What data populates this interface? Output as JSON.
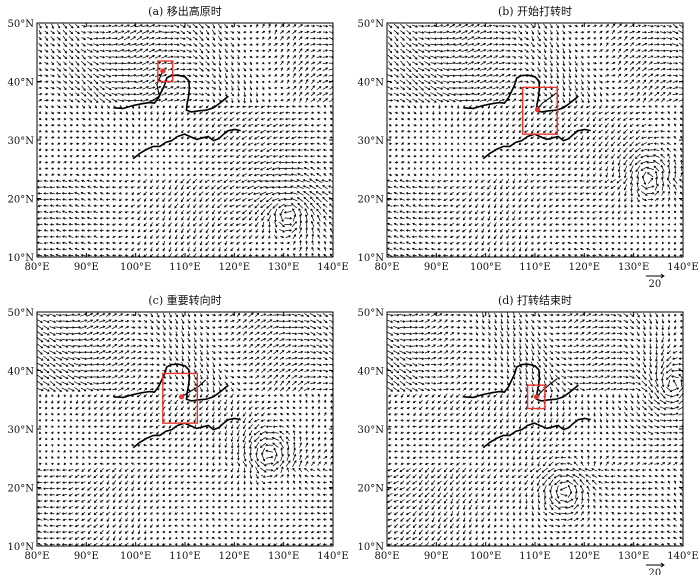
{
  "panels": [
    {
      "id": "a",
      "title": "(a) 移出高原时",
      "box": {
        "lon": [
          104.5,
          107.5
        ],
        "lat": [
          40,
          43.5
        ]
      },
      "marker": {
        "lon": 105.5,
        "lat": 41.8
      },
      "track": [
        [
          105.5,
          41.8
        ],
        [
          104.3,
          39.5
        ],
        [
          104.8,
          37.5
        ],
        [
          103,
          36.5
        ]
      ],
      "vortices": [
        {
          "lon": 131,
          "lat": 17.5
        }
      ],
      "show_scale": false
    },
    {
      "id": "b",
      "title": "(b) 开始打转时",
      "box": {
        "lon": [
          107.5,
          114.5
        ],
        "lat": [
          31,
          39
        ]
      },
      "marker": {
        "lon": 110.5,
        "lat": 35.2
      },
      "track": [
        [
          110.5,
          35.2
        ],
        [
          111.5,
          36.3
        ],
        [
          113,
          37.2
        ],
        [
          114.3,
          38
        ]
      ],
      "vortices": [
        {
          "lon": 133,
          "lat": 23.5
        }
      ],
      "show_scale": true
    },
    {
      "id": "c",
      "title": "(c) 重要转向时",
      "box": {
        "lon": [
          105.5,
          112.5
        ],
        "lat": [
          31,
          39.5
        ]
      },
      "marker": {
        "lon": 109.3,
        "lat": 35.5
      },
      "track": [
        [
          109.3,
          35.5
        ],
        [
          111,
          36.4
        ],
        [
          112.8,
          37.3
        ],
        [
          114.2,
          38.4
        ]
      ],
      "vortices": [
        {
          "lon": 127,
          "lat": 25.5
        }
      ],
      "show_scale": false
    },
    {
      "id": "d",
      "title": "(d) 打转结束时",
      "box": {
        "lon": [
          108.5,
          112
        ],
        "lat": [
          33.5,
          37.5
        ]
      },
      "marker": {
        "lon": 110.3,
        "lat": 35.5
      },
      "track": [
        [
          110.3,
          35.5
        ],
        [
          111.7,
          36.7
        ],
        [
          113.2,
          37.8
        ],
        [
          114.5,
          38.6
        ]
      ],
      "vortices": [
        {
          "lon": 116,
          "lat": 19.5
        },
        {
          "lon": 138,
          "lat": 37.5
        }
      ],
      "show_scale": true
    }
  ],
  "axes": {
    "lon_ticks": [
      "80°E",
      "90°E",
      "100°E",
      "110°E",
      "120°E",
      "130°E",
      "140°E"
    ],
    "lat_ticks": [
      "10°N",
      "20°N",
      "30°N",
      "40°N",
      "50°N"
    ],
    "lon_range": [
      80,
      140
    ],
    "lat_range": [
      10,
      50
    ]
  },
  "scale_label": "20",
  "colors": {
    "box": "#e8332a",
    "marker": "#e8332a",
    "vector": "#000000",
    "river": "#000000",
    "frame": "#000000"
  }
}
